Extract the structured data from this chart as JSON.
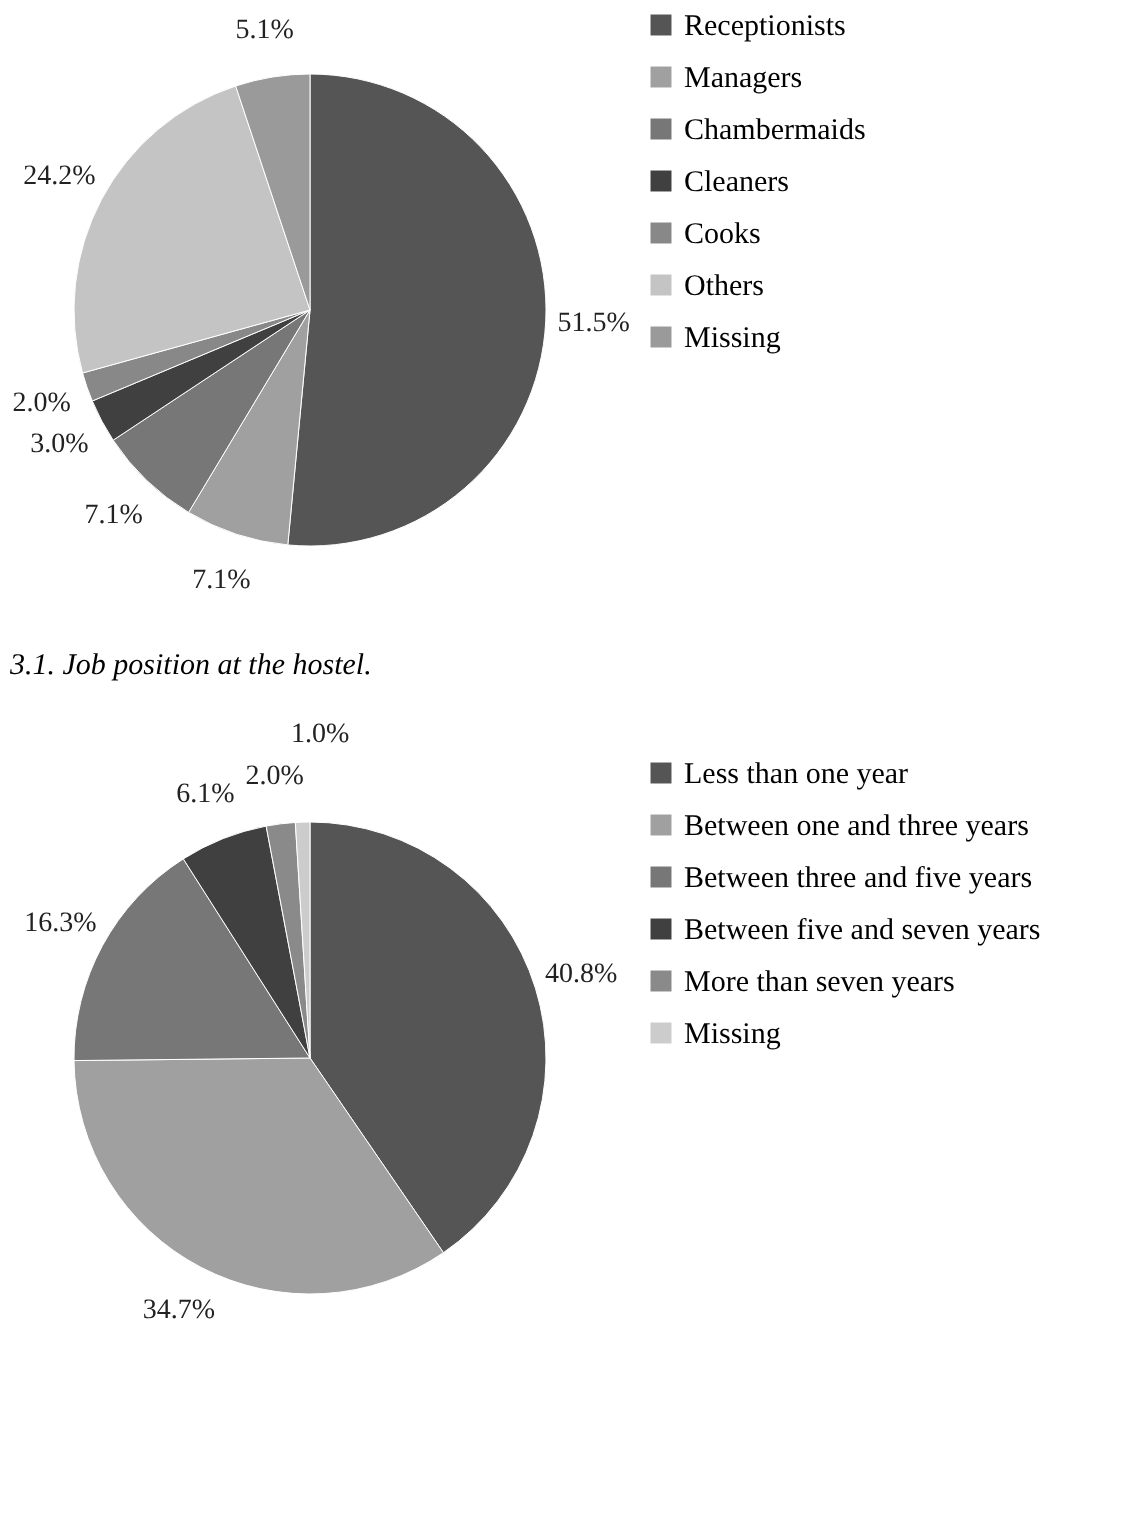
{
  "chart_data": [
    {
      "type": "pie",
      "categories": [
        "Receptionists",
        "Managers",
        "Chambermaids",
        "Cleaners",
        "Cooks",
        "Others",
        "Missing"
      ],
      "values": [
        51.5,
        7.1,
        7.1,
        3.0,
        2.0,
        24.2,
        5.1
      ],
      "value_labels": [
        "51.5%",
        "7.1%",
        "7.1%",
        "3.0%",
        "2.0%",
        "24.2%",
        "5.1%"
      ],
      "colors": [
        "#555555",
        "#a0a0a0",
        "#777777",
        "#404040",
        "#888888",
        "#c4c4c4",
        "#9a9a9a"
      ],
      "legend": "right",
      "annotations": [
        "3.1. Job position at the hostel."
      ]
    },
    {
      "type": "pie",
      "categories": [
        "Less than one year",
        "Between one and three years",
        "Between three and five years",
        "Between five and seven years",
        "More than seven years",
        "Missing"
      ],
      "values": [
        40.8,
        34.7,
        16.3,
        6.1,
        2.0,
        1.0
      ],
      "value_labels": [
        "40.8%",
        "34.7%",
        "16.3%",
        "6.1%",
        "2.0%",
        "1.0%"
      ],
      "colors": [
        "#555555",
        "#a0a0a0",
        "#777777",
        "#404040",
        "#8a8a8a",
        "#cccccc"
      ],
      "legend": "right"
    }
  ]
}
